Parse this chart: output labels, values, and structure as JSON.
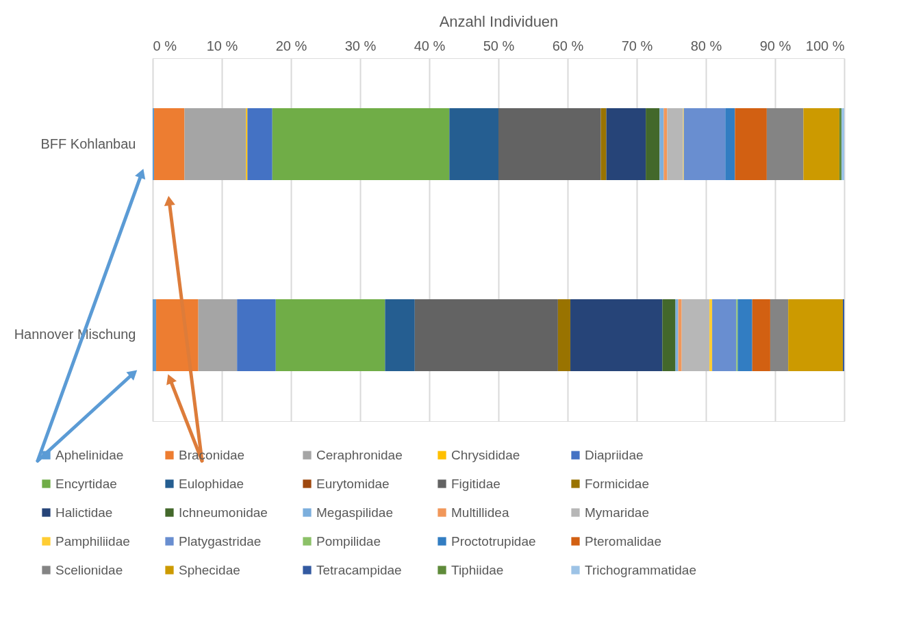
{
  "chart_data": {
    "type": "bar",
    "orientation": "horizontal",
    "stacked": true,
    "xlabel": "Anzahl Individuen",
    "categories": [
      "BFF Kohlanbau",
      "Hannover Mischung"
    ],
    "xlim": [
      0,
      100
    ],
    "xticks": [
      {
        "value": 0,
        "label": "0 %"
      },
      {
        "value": 10,
        "label": "10 %"
      },
      {
        "value": 20,
        "label": "20 %"
      },
      {
        "value": 30,
        "label": "30 %"
      },
      {
        "value": 40,
        "label": "40 %"
      },
      {
        "value": 50,
        "label": "50 %"
      },
      {
        "value": 60,
        "label": "60 %"
      },
      {
        "value": 70,
        "label": "70 %"
      },
      {
        "value": 80,
        "label": "80 %"
      },
      {
        "value": 90,
        "label": "90 %"
      },
      {
        "value": 100,
        "label": "100 %"
      }
    ],
    "grid": "x",
    "legend": "bottom",
    "series": [
      {
        "name": "Aphelinidae",
        "color": "#5b9bd5",
        "values": [
          0.2,
          0.5
        ]
      },
      {
        "name": "Braconidae",
        "color": "#ed7d31",
        "values": [
          4.4,
          6.1
        ]
      },
      {
        "name": "Ceraphronidae",
        "color": "#a5a5a5",
        "values": [
          8.9,
          5.6
        ]
      },
      {
        "name": "Chrysididae",
        "color": "#ffc000",
        "values": [
          0.2,
          0
        ]
      },
      {
        "name": "Diapriidae",
        "color": "#4472c4",
        "values": [
          3.6,
          5.6
        ]
      },
      {
        "name": "Encyrtidae",
        "color": "#70ad47",
        "values": [
          25.6,
          15.8
        ]
      },
      {
        "name": "Eulophidae",
        "color": "#255e91",
        "values": [
          7.1,
          4.3
        ]
      },
      {
        "name": "Eurytomidae",
        "color": "#9e480e",
        "values": [
          0,
          0
        ]
      },
      {
        "name": "Figitidae",
        "color": "#636363",
        "values": [
          14.8,
          20.7
        ]
      },
      {
        "name": "Formicidae",
        "color": "#997300",
        "values": [
          0.8,
          1.8
        ]
      },
      {
        "name": "Halictidae",
        "color": "#264478",
        "values": [
          5.7,
          13.3
        ]
      },
      {
        "name": "Ichneumonidae",
        "color": "#43682b",
        "values": [
          2.0,
          1.9
        ]
      },
      {
        "name": "Megaspilidae",
        "color": "#7cafdd",
        "values": [
          0.6,
          0.4
        ]
      },
      {
        "name": "Multillidea",
        "color": "#f1975a",
        "values": [
          0.5,
          0.5
        ]
      },
      {
        "name": "Mymaridae",
        "color": "#b7b7b7",
        "values": [
          2.3,
          4.0
        ]
      },
      {
        "name": "Pamphiliidae",
        "color": "#ffcd33",
        "values": [
          0.1,
          0.4
        ]
      },
      {
        "name": "Platygastridae",
        "color": "#698ed0",
        "values": [
          6.0,
          3.5
        ]
      },
      {
        "name": "Pompilidae",
        "color": "#8cc168",
        "values": [
          0,
          0.2
        ]
      },
      {
        "name": "Proctotrupidae",
        "color": "#327dc2",
        "values": [
          1.4,
          2.1
        ]
      },
      {
        "name": "Pteromalidae",
        "color": "#d26012",
        "values": [
          4.6,
          2.6
        ]
      },
      {
        "name": "Scelionidae",
        "color": "#848484",
        "values": [
          5.3,
          2.6
        ]
      },
      {
        "name": "Sphecidae",
        "color": "#cc9a00",
        "values": [
          5.2,
          7.9
        ]
      },
      {
        "name": "Tetracampidae",
        "color": "#335aa1",
        "values": [
          0,
          0.2
        ]
      },
      {
        "name": "Tiphiidae",
        "color": "#5f8b3a",
        "values": [
          0.3,
          0
        ]
      },
      {
        "name": "Trichogrammatidae",
        "color": "#9dc3e6",
        "values": [
          0.4,
          0
        ]
      }
    ]
  }
}
